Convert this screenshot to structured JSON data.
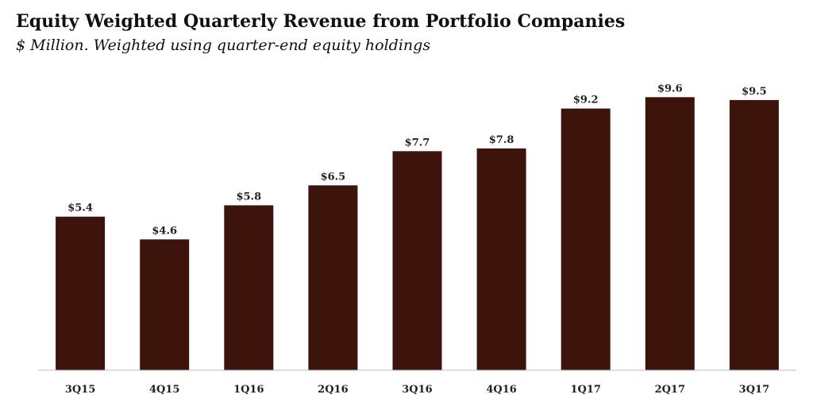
{
  "chart_data": {
    "type": "bar",
    "title": "Equity Weighted Quarterly Revenue from Portfolio Companies",
    "subtitle": "$ Million. Weighted using quarter-end equity holdings",
    "categories": [
      "3Q15",
      "4Q15",
      "1Q16",
      "2Q16",
      "3Q16",
      "4Q16",
      "1Q17",
      "2Q17",
      "3Q17"
    ],
    "values": [
      5.4,
      4.6,
      5.8,
      6.5,
      7.7,
      7.8,
      9.2,
      9.6,
      9.5
    ],
    "data_labels": [
      "$5.4",
      "$4.6",
      "$5.8",
      "$6.5",
      "$7.7",
      "$7.8",
      "$9.2",
      "$9.6",
      "$9.5"
    ],
    "xlabel": "",
    "ylabel": "",
    "ylim": [
      0,
      10
    ],
    "grid": false,
    "legend": "none",
    "bar_color": "#3d140c",
    "axis_color": "#bdbdbd"
  }
}
